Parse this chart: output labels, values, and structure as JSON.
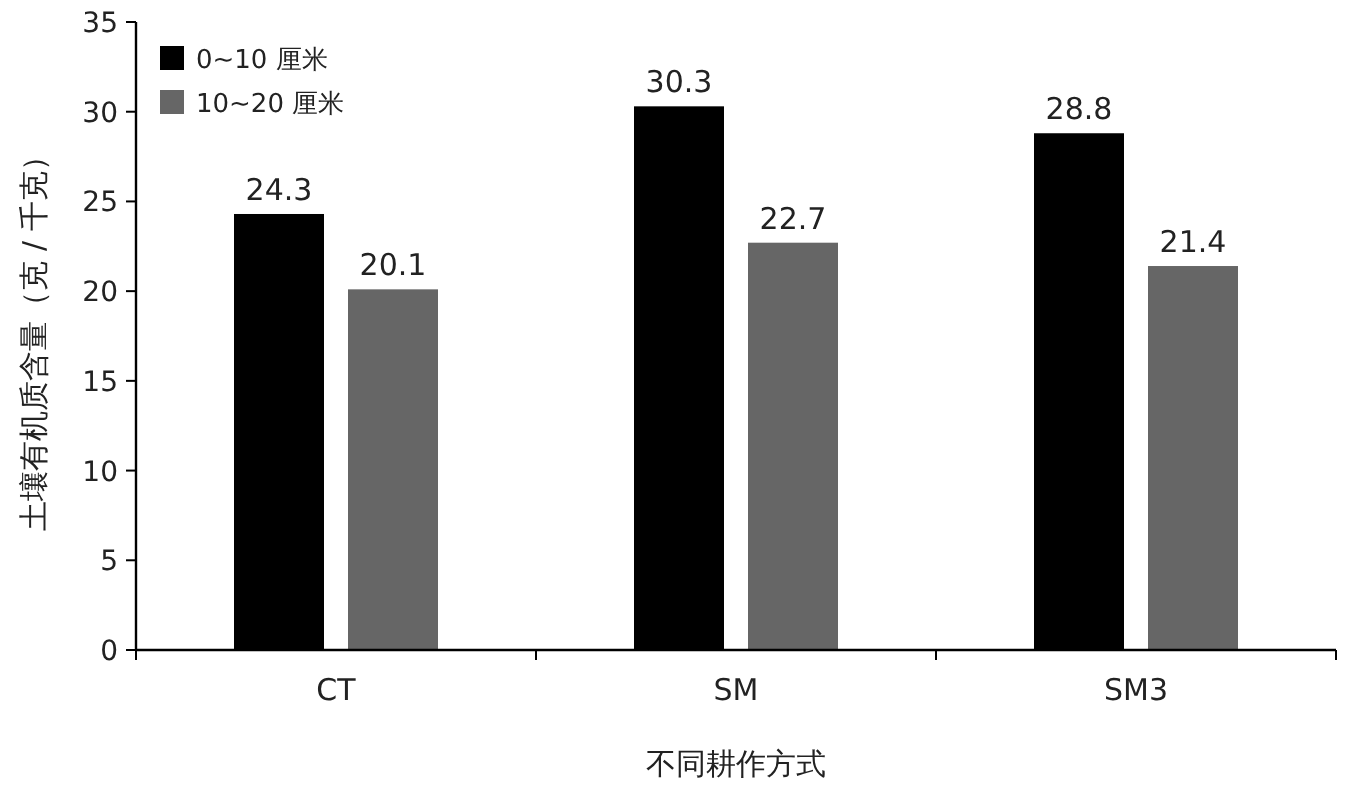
{
  "chart_data": {
    "type": "bar",
    "xlabel": "不同耕作方式",
    "ylabel": "土壤有机质含量（克 / 千克）",
    "categories": [
      "CT",
      "SM",
      "SM3"
    ],
    "series": [
      {
        "name": "0~10 厘米",
        "color": "#000000",
        "values": [
          24.3,
          30.3,
          28.8
        ]
      },
      {
        "name": "10~20 厘米",
        "color": "#666666",
        "values": [
          20.1,
          22.7,
          21.4
        ]
      }
    ],
    "ylim": [
      0,
      35
    ],
    "yticks": [
      0,
      5,
      10,
      15,
      20,
      25,
      30,
      35
    ],
    "data_labels": true,
    "legend": "top left",
    "grid": false
  }
}
